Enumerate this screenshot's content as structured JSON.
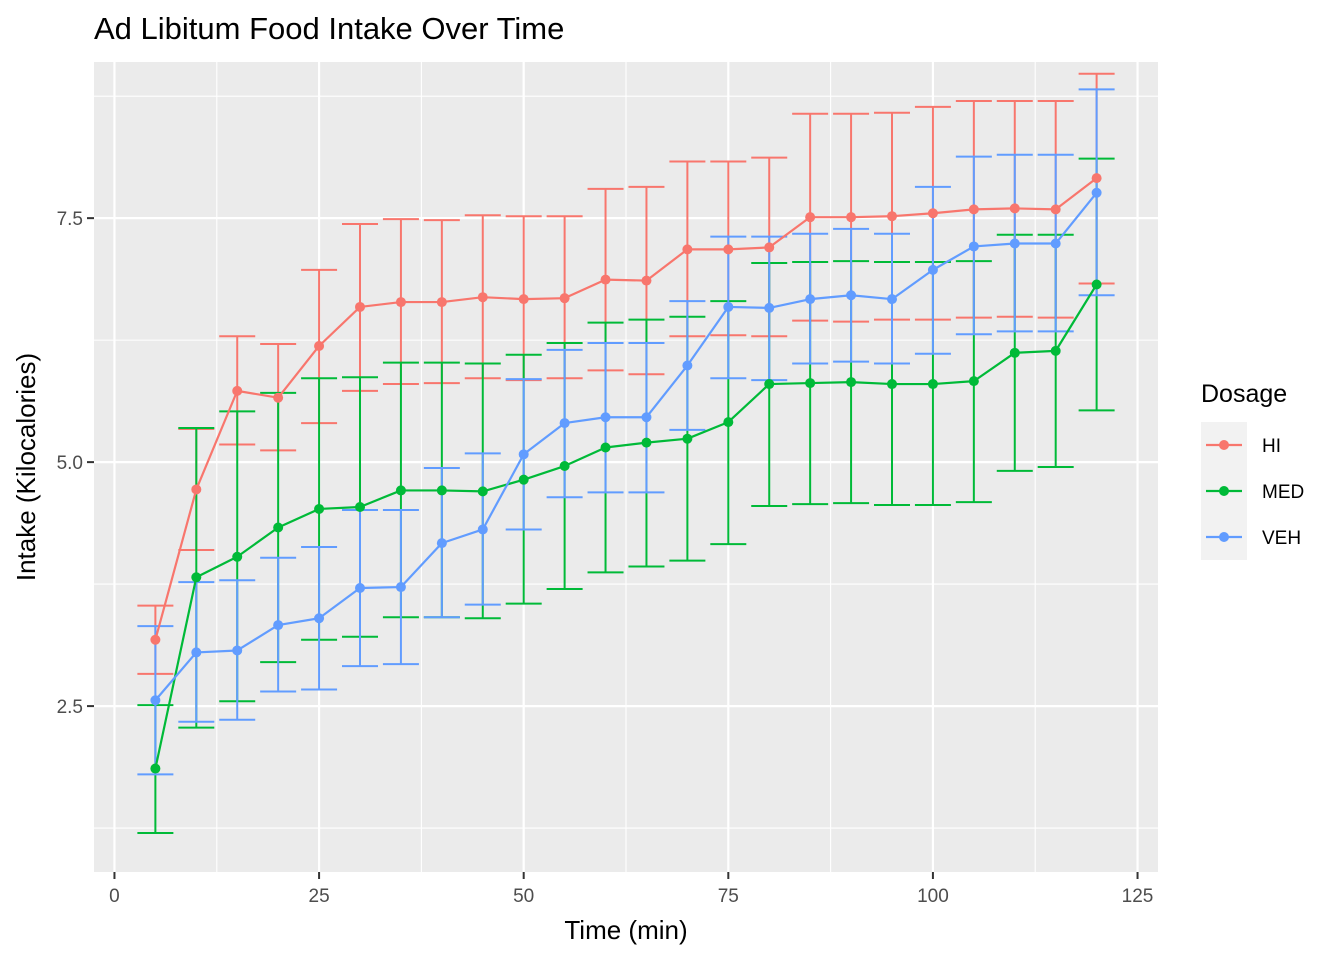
{
  "chart_data": {
    "type": "line",
    "title": "Ad Libitum Food Intake Over Time",
    "xlabel": "Time (min)",
    "ylabel": "Intake (Kilocalories)",
    "xlim": [
      -2.5,
      127.5
    ],
    "ylim": [
      0.8,
      9.1
    ],
    "x_ticks": [
      0,
      25,
      50,
      75,
      100,
      125
    ],
    "x_tick_labels": [
      "0",
      "25",
      "50",
      "75",
      "100",
      "125"
    ],
    "y_ticks": [
      2.5,
      5.0,
      7.5
    ],
    "y_tick_labels": [
      "2.5",
      "5.0",
      "7.5"
    ],
    "grid": true,
    "legend": {
      "title": "Dosage",
      "position": "right"
    },
    "x": [
      5,
      10,
      15,
      20,
      25,
      30,
      35,
      40,
      45,
      50,
      55,
      60,
      65,
      70,
      75,
      80,
      85,
      90,
      95,
      100,
      105,
      110,
      115,
      120
    ],
    "series": [
      {
        "name": "HI",
        "color": "#F8766D",
        "values": [
          3.18,
          4.72,
          5.73,
          5.66,
          6.19,
          6.59,
          6.64,
          6.64,
          6.69,
          6.67,
          6.68,
          6.87,
          6.86,
          7.18,
          7.18,
          7.2,
          7.51,
          7.51,
          7.52,
          7.55,
          7.59,
          7.6,
          7.59,
          7.91
        ],
        "error_low": [
          2.83,
          4.1,
          5.18,
          5.12,
          5.4,
          5.73,
          5.8,
          5.81,
          5.86,
          5.84,
          5.86,
          5.94,
          5.9,
          6.29,
          6.3,
          6.29,
          6.45,
          6.44,
          6.46,
          6.46,
          6.48,
          6.49,
          6.48,
          6.83
        ],
        "error_high": [
          3.53,
          5.34,
          6.29,
          6.21,
          6.97,
          7.44,
          7.49,
          7.48,
          7.53,
          7.52,
          7.52,
          7.8,
          7.82,
          8.08,
          8.08,
          8.12,
          8.57,
          8.57,
          8.58,
          8.64,
          8.7,
          8.7,
          8.7,
          8.98
        ]
      },
      {
        "name": "MED",
        "color": "#00BA38",
        "values": [
          1.86,
          3.82,
          4.03,
          4.33,
          4.52,
          4.54,
          4.71,
          4.71,
          4.7,
          4.82,
          4.96,
          5.15,
          5.2,
          5.24,
          5.41,
          5.8,
          5.81,
          5.82,
          5.8,
          5.8,
          5.83,
          6.12,
          6.14,
          6.82
        ],
        "error_low": [
          1.2,
          2.28,
          2.55,
          2.95,
          3.18,
          3.21,
          3.41,
          3.41,
          3.4,
          3.55,
          3.7,
          3.87,
          3.93,
          3.99,
          4.16,
          4.55,
          4.57,
          4.58,
          4.56,
          4.56,
          4.59,
          4.91,
          4.95,
          5.53
        ],
        "error_high": [
          2.51,
          5.35,
          5.52,
          5.71,
          5.86,
          5.87,
          6.02,
          6.02,
          6.01,
          6.1,
          6.22,
          6.43,
          6.46,
          6.49,
          6.65,
          7.04,
          7.05,
          7.06,
          7.05,
          7.05,
          7.06,
          7.33,
          7.33,
          8.11
        ]
      },
      {
        "name": "VEH",
        "color": "#619CFF",
        "values": [
          2.56,
          3.05,
          3.07,
          3.33,
          3.4,
          3.71,
          3.72,
          4.17,
          4.31,
          5.08,
          5.4,
          5.46,
          5.46,
          5.99,
          6.59,
          6.58,
          6.67,
          6.71,
          6.67,
          6.97,
          7.21,
          7.24,
          7.24,
          7.76
        ],
        "error_low": [
          1.8,
          2.34,
          2.36,
          2.65,
          2.67,
          2.91,
          2.93,
          3.41,
          3.54,
          4.31,
          4.64,
          4.69,
          4.69,
          5.33,
          5.86,
          5.84,
          6.01,
          6.03,
          6.01,
          6.11,
          6.31,
          6.34,
          6.34,
          6.71
        ],
        "error_high": [
          3.32,
          3.77,
          3.79,
          4.02,
          4.13,
          4.51,
          4.51,
          4.94,
          5.09,
          5.85,
          6.15,
          6.22,
          6.22,
          6.65,
          7.31,
          7.31,
          7.34,
          7.39,
          7.34,
          7.82,
          8.13,
          8.15,
          8.15,
          8.82
        ]
      }
    ]
  }
}
